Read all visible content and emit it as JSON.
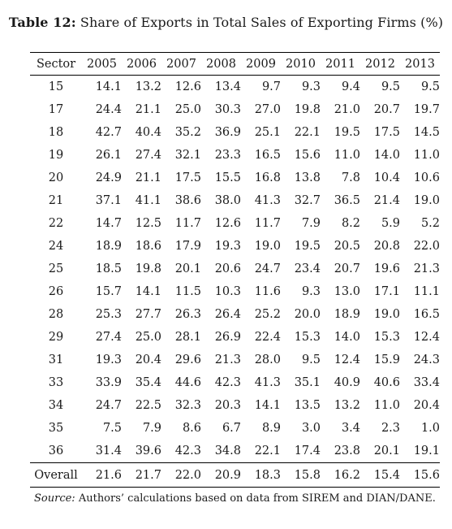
{
  "table": {
    "caption_label": "Table 12:",
    "caption_text": "Share of Exports in Total Sales of Exporting Firms (%)",
    "headers": [
      "Sector",
      "2005",
      "2006",
      "2007",
      "2008",
      "2009",
      "2010",
      "2011",
      "2012",
      "2013"
    ],
    "rows": [
      [
        "15",
        "14.1",
        "13.2",
        "12.6",
        "13.4",
        "9.7",
        "9.3",
        "9.4",
        "9.5",
        "9.5"
      ],
      [
        "17",
        "24.4",
        "21.1",
        "25.0",
        "30.3",
        "27.0",
        "19.8",
        "21.0",
        "20.7",
        "19.7"
      ],
      [
        "18",
        "42.7",
        "40.4",
        "35.2",
        "36.9",
        "25.1",
        "22.1",
        "19.5",
        "17.5",
        "14.5"
      ],
      [
        "19",
        "26.1",
        "27.4",
        "32.1",
        "23.3",
        "16.5",
        "15.6",
        "11.0",
        "14.0",
        "11.0"
      ],
      [
        "20",
        "24.9",
        "21.1",
        "17.5",
        "15.5",
        "16.8",
        "13.8",
        "7.8",
        "10.4",
        "10.6"
      ],
      [
        "21",
        "37.1",
        "41.1",
        "38.6",
        "38.0",
        "41.3",
        "32.7",
        "36.5",
        "21.4",
        "19.0"
      ],
      [
        "22",
        "14.7",
        "12.5",
        "11.7",
        "12.6",
        "11.7",
        "7.9",
        "8.2",
        "5.9",
        "5.2"
      ],
      [
        "24",
        "18.9",
        "18.6",
        "17.9",
        "19.3",
        "19.0",
        "19.5",
        "20.5",
        "20.8",
        "22.0"
      ],
      [
        "25",
        "18.5",
        "19.8",
        "20.1",
        "20.6",
        "24.7",
        "23.4",
        "20.7",
        "19.6",
        "21.3"
      ],
      [
        "26",
        "15.7",
        "14.1",
        "11.5",
        "10.3",
        "11.6",
        "9.3",
        "13.0",
        "17.1",
        "11.1"
      ],
      [
        "28",
        "25.3",
        "27.7",
        "26.3",
        "26.4",
        "25.2",
        "20.0",
        "18.9",
        "19.0",
        "16.5"
      ],
      [
        "29",
        "27.4",
        "25.0",
        "28.1",
        "26.9",
        "22.4",
        "15.3",
        "14.0",
        "15.3",
        "12.4"
      ],
      [
        "31",
        "19.3",
        "20.4",
        "29.6",
        "21.3",
        "28.0",
        "9.5",
        "12.4",
        "15.9",
        "24.3"
      ],
      [
        "33",
        "33.9",
        "35.4",
        "44.6",
        "42.3",
        "41.3",
        "35.1",
        "40.9",
        "40.6",
        "33.4"
      ],
      [
        "34",
        "24.7",
        "22.5",
        "32.3",
        "20.3",
        "14.1",
        "13.5",
        "13.2",
        "11.0",
        "20.4"
      ],
      [
        "35",
        "7.5",
        "7.9",
        "8.6",
        "6.7",
        "8.9",
        "3.0",
        "3.4",
        "2.3",
        "1.0"
      ],
      [
        "36",
        "31.4",
        "39.6",
        "42.3",
        "34.8",
        "22.1",
        "17.4",
        "23.8",
        "20.1",
        "19.1"
      ]
    ],
    "overall_row": [
      "Overall",
      "21.6",
      "21.7",
      "22.0",
      "20.9",
      "18.3",
      "15.8",
      "16.2",
      "15.4",
      "15.6"
    ]
  },
  "source": {
    "label": "Source:",
    "text": "Authors’ calculations based on data from SIREM and DIAN/DANE."
  }
}
